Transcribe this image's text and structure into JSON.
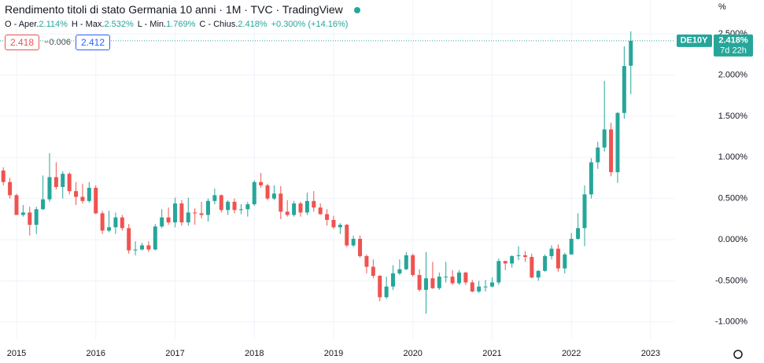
{
  "header": {
    "title": "Rendimento titoli di stato Germania 10 anni · 1M · TVC · TradingView",
    "ohlc": [
      {
        "label": "O - Aper.",
        "value": "2.114%"
      },
      {
        "label": "H - Max.",
        "value": "2.532%"
      },
      {
        "label": "L - Min.",
        "value": "1.769%"
      },
      {
        "label": "C - Chius.",
        "value": "2.418%"
      }
    ],
    "change": "+0.300% (+14.16%)",
    "bid": "2.418",
    "spread": "−0.006",
    "ask": "2.412"
  },
  "chart_data": {
    "type": "candlestick",
    "symbol": "DE10Y",
    "last_label": "2.418%",
    "countdown": "7d 22h",
    "unit": "%",
    "up_color": "#26a69a",
    "down_color": "#ef5350",
    "grid": true,
    "xlim": [
      -0.5,
      101.7
    ],
    "xticks": [
      {
        "value": 2,
        "label": "2015"
      },
      {
        "value": 14,
        "label": "2016"
      },
      {
        "value": 26,
        "label": "2017"
      },
      {
        "value": 38,
        "label": "2018"
      },
      {
        "value": 50,
        "label": "2019"
      },
      {
        "value": 62,
        "label": "2020"
      },
      {
        "value": 74,
        "label": "2021"
      },
      {
        "value": 86,
        "label": "2022"
      },
      {
        "value": 98,
        "label": "2023"
      }
    ],
    "ylim": [
      -1.213,
      2.913
    ],
    "yticks": [
      {
        "value": -1,
        "label": "-1.000%"
      },
      {
        "value": -0.5,
        "label": "-0.500%"
      },
      {
        "value": 0,
        "label": "0.000%"
      },
      {
        "value": 0.5,
        "label": "0.500%"
      },
      {
        "value": 1,
        "label": "1.000%"
      },
      {
        "value": 1.5,
        "label": "1.500%"
      },
      {
        "value": 2,
        "label": "2.000%"
      },
      {
        "value": 2.5,
        "label": "2.500%"
      }
    ],
    "open": [
      0.84,
      0.7,
      0.54,
      0.3,
      0.33,
      0.18,
      0.37,
      0.49,
      0.76,
      0.64,
      0.8,
      0.59,
      0.52,
      0.47,
      0.63,
      0.32,
      0.11,
      0.15,
      0.27,
      0.14,
      -0.13,
      -0.12,
      -0.07,
      -0.12,
      0.16,
      0.27,
      0.21,
      0.44,
      0.21,
      0.33,
      0.32,
      0.3,
      0.47,
      0.54,
      0.36,
      0.46,
      0.36,
      0.37,
      0.43,
      0.7,
      0.66,
      0.5,
      0.56,
      0.34,
      0.3,
      0.44,
      0.33,
      0.47,
      0.39,
      0.31,
      0.24,
      0.15,
      0.18,
      -0.07,
      0.01,
      -0.2,
      -0.33,
      -0.44,
      -0.7,
      -0.57,
      -0.41,
      -0.36,
      -0.19,
      -0.43,
      -0.61,
      -0.47,
      -0.59,
      -0.45,
      -0.45,
      -0.53,
      -0.4,
      -0.52,
      -0.63,
      -0.57,
      -0.57,
      -0.52,
      -0.26,
      -0.29,
      -0.2,
      -0.19,
      -0.21,
      -0.46,
      -0.38,
      -0.2,
      -0.11,
      -0.35,
      -0.18,
      0.01,
      0.14,
      0.55,
      0.94,
      1.12,
      1.34,
      0.82,
      1.54,
      2.114
    ],
    "high": [
      0.88,
      0.75,
      0.56,
      0.42,
      0.4,
      0.4,
      0.78,
      1.05,
      0.94,
      0.83,
      0.82,
      0.7,
      0.68,
      0.7,
      0.66,
      0.35,
      0.35,
      0.33,
      0.3,
      0.19,
      -0.02,
      -0.04,
      -0.02,
      0.19,
      0.37,
      0.39,
      0.51,
      0.48,
      0.51,
      0.38,
      0.46,
      0.5,
      0.62,
      0.55,
      0.48,
      0.5,
      0.43,
      0.46,
      0.72,
      0.81,
      0.68,
      0.66,
      0.65,
      0.48,
      0.47,
      0.46,
      0.57,
      0.59,
      0.44,
      0.37,
      0.29,
      0.2,
      0.19,
      0.05,
      0.05,
      -0.18,
      -0.24,
      -0.43,
      -0.45,
      -0.31,
      -0.24,
      -0.15,
      -0.17,
      -0.36,
      -0.15,
      -0.27,
      -0.4,
      -0.27,
      -0.37,
      -0.37,
      -0.39,
      -0.49,
      -0.5,
      -0.49,
      -0.46,
      -0.23,
      -0.26,
      -0.19,
      -0.08,
      -0.14,
      -0.17,
      -0.37,
      -0.18,
      -0.07,
      -0.06,
      -0.16,
      0.08,
      0.32,
      0.66,
      0.99,
      1.19,
      1.93,
      1.42,
      1.55,
      2.35,
      2.532
    ],
    "low": [
      0.66,
      0.5,
      0.3,
      0.28,
      0.05,
      0.07,
      0.36,
      0.46,
      0.61,
      0.5,
      0.55,
      0.42,
      0.44,
      0.45,
      0.31,
      0.07,
      0.09,
      0.07,
      0.11,
      -0.17,
      -0.19,
      -0.13,
      -0.15,
      -0.13,
      0.14,
      0.18,
      0.15,
      0.17,
      0.17,
      0.18,
      0.26,
      0.22,
      0.43,
      0.33,
      0.3,
      0.32,
      0.31,
      0.28,
      0.41,
      0.63,
      0.48,
      0.48,
      0.25,
      0.28,
      0.28,
      0.28,
      0.3,
      0.34,
      0.3,
      0.17,
      0.13,
      0.07,
      -0.09,
      -0.09,
      -0.22,
      -0.41,
      -0.47,
      -0.75,
      -0.72,
      -0.61,
      -0.43,
      -0.37,
      -0.45,
      -0.63,
      -0.9,
      -0.6,
      -0.61,
      -0.52,
      -0.55,
      -0.55,
      -0.55,
      -0.64,
      -0.65,
      -0.63,
      -0.58,
      -0.55,
      -0.37,
      -0.34,
      -0.25,
      -0.27,
      -0.47,
      -0.5,
      -0.39,
      -0.24,
      -0.39,
      -0.41,
      -0.18,
      0.0,
      -0.08,
      0.5,
      0.86,
      1.07,
      0.77,
      0.69,
      1.47,
      1.769
    ],
    "close": [
      0.7,
      0.54,
      0.3,
      0.33,
      0.18,
      0.37,
      0.49,
      0.76,
      0.64,
      0.8,
      0.59,
      0.52,
      0.47,
      0.63,
      0.32,
      0.11,
      0.15,
      0.27,
      0.14,
      -0.13,
      -0.12,
      -0.07,
      -0.12,
      0.16,
      0.27,
      0.21,
      0.44,
      0.21,
      0.33,
      0.32,
      0.3,
      0.47,
      0.54,
      0.36,
      0.46,
      0.36,
      0.37,
      0.43,
      0.7,
      0.66,
      0.5,
      0.56,
      0.34,
      0.3,
      0.44,
      0.33,
      0.47,
      0.39,
      0.31,
      0.24,
      0.15,
      0.18,
      -0.07,
      0.01,
      -0.2,
      -0.33,
      -0.44,
      -0.7,
      -0.57,
      -0.41,
      -0.36,
      -0.19,
      -0.43,
      -0.61,
      -0.47,
      -0.59,
      -0.45,
      -0.45,
      -0.53,
      -0.4,
      -0.52,
      -0.63,
      -0.57,
      -0.57,
      -0.52,
      -0.26,
      -0.29,
      -0.2,
      -0.19,
      -0.21,
      -0.46,
      -0.38,
      -0.2,
      -0.11,
      -0.35,
      -0.18,
      0.01,
      0.14,
      0.55,
      0.94,
      1.12,
      1.34,
      0.82,
      1.54,
      2.11,
      2.418
    ]
  }
}
